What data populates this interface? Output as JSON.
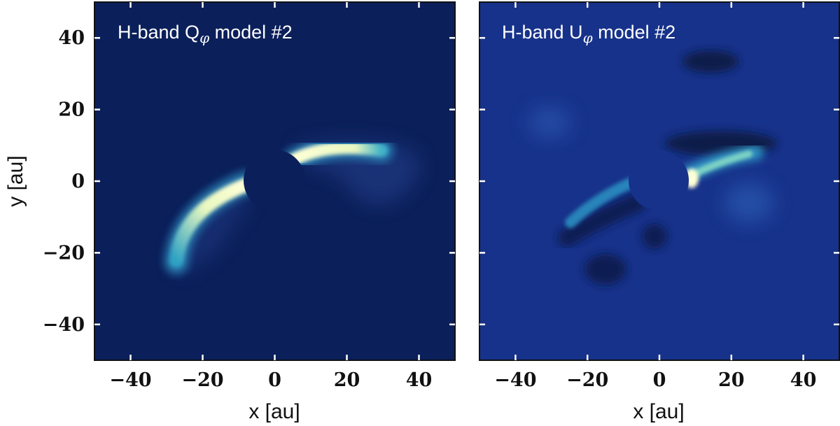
{
  "chart_data": [
    {
      "type": "heatmap",
      "title": "H-band Q",
      "title_symbol": "φ",
      "title_suffix": " model #2",
      "xlabel": "x [au]",
      "ylabel": "y [au]",
      "xlim": [
        -50,
        50
      ],
      "ylim": [
        -50,
        50
      ],
      "xticks": [
        -40,
        -20,
        0,
        20,
        40
      ],
      "yticks": [
        -40,
        -20,
        0,
        20,
        40
      ],
      "show_yticklabels": true,
      "background_color": "#0b1f5a",
      "mask_radius_au": 8.5,
      "features": [
        {
          "kind": "arc",
          "x": [
            -27,
            -22,
            -16,
            -10,
            -6
          ],
          "y": [
            -22,
            -13,
            -7,
            -3,
            -1
          ],
          "peak": 1.0
        },
        {
          "kind": "arc",
          "x": [
            7,
            12,
            18,
            24,
            29
          ],
          "y": [
            6,
            8,
            9,
            9,
            7
          ],
          "peak": 0.95
        }
      ]
    },
    {
      "type": "heatmap",
      "title": "H-band U",
      "title_symbol": "φ",
      "title_suffix": " model #2",
      "xlabel": "x [au]",
      "ylabel": "",
      "xlim": [
        -50,
        50
      ],
      "ylim": [
        -50,
        50
      ],
      "xticks": [
        -40,
        -20,
        0,
        20,
        40
      ],
      "yticks": [
        -40,
        -20,
        0,
        20,
        40
      ],
      "show_yticklabels": false,
      "background_color": "#17328a",
      "mask_radius_au": 8.5,
      "features": [
        {
          "kind": "arc",
          "x": [
            -24,
            -18,
            -12,
            -7
          ],
          "y": [
            -12,
            -8,
            -4,
            -1
          ],
          "peak": 0.6
        },
        {
          "kind": "arc",
          "x": [
            8,
            13,
            19,
            26
          ],
          "y": [
            1,
            4,
            6,
            8
          ],
          "peak": 1.0
        },
        {
          "kind": "dark",
          "x": [
            10,
            18,
            25
          ],
          "y": [
            12,
            12,
            10
          ],
          "peak": 0.6
        },
        {
          "kind": "dark",
          "x": [
            -22,
            -12
          ],
          "y": [
            -14,
            -8
          ],
          "peak": 0.4
        },
        {
          "kind": "dark",
          "x": [
            -16,
            -8
          ],
          "y": [
            -24,
            -16
          ],
          "peak": 0.5
        }
      ]
    }
  ]
}
